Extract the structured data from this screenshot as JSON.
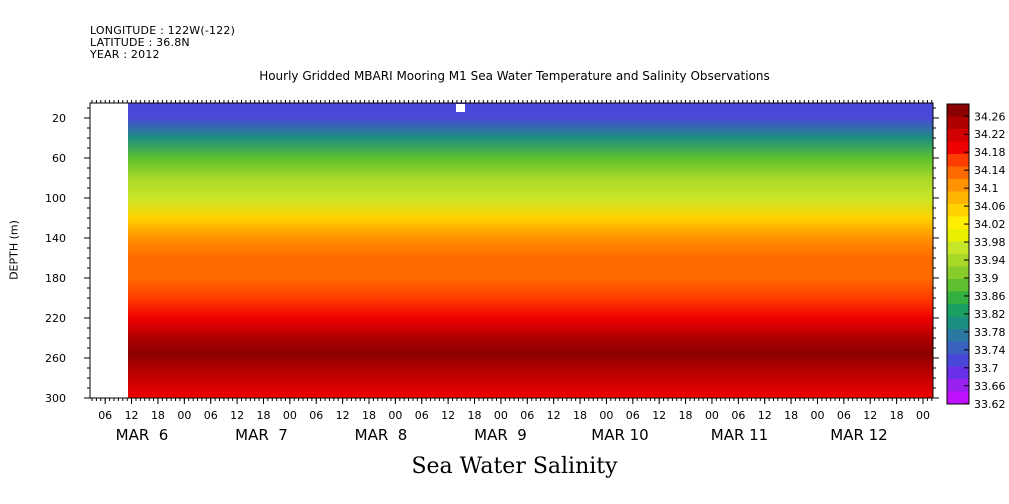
{
  "header": {
    "longitude": "LONGITUDE : 122W(-122)",
    "latitude": "LATITUDE : 36.8N",
    "year": "YEAR : 2012"
  },
  "chart_data": {
    "type": "heatmap",
    "title": "Hourly Gridded MBARI Mooring M1 Sea Water Temperature and Salinity Observations",
    "xtitle": "Sea Water Salinity",
    "ylabel": "DEPTH (m)",
    "ylim": [
      300,
      5
    ],
    "yticks": [
      20,
      60,
      100,
      140,
      180,
      220,
      260,
      300
    ],
    "x_hour_ticks": [
      "06",
      "12",
      "18",
      "00",
      "06",
      "12",
      "18",
      "00",
      "06",
      "12",
      "18",
      "00",
      "06",
      "12",
      "18",
      "00",
      "06",
      "12",
      "18",
      "00",
      "06",
      "12",
      "18",
      "00",
      "06",
      "12",
      "18",
      "00",
      "06",
      "12",
      "18",
      "00"
    ],
    "x_date_labels": [
      "MAR  6",
      "MAR  7",
      "MAR  8",
      "MAR  9",
      "MAR 10",
      "MAR 11",
      "MAR 12"
    ],
    "colorbar_labels": [
      "34.26",
      "34.22",
      "34.18",
      "34.14",
      "34.1",
      "34.06",
      "34.02",
      "33.98",
      "33.94",
      "33.9",
      "33.86",
      "33.82",
      "33.78",
      "33.74",
      "33.7",
      "33.66",
      "33.62"
    ],
    "colorbar_colors": [
      "#8b0000",
      "#b00000",
      "#d20000",
      "#f00000",
      "#ff3c00",
      "#ff6a00",
      "#ff9200",
      "#ffb400",
      "#ffd200",
      "#ffee00",
      "#e8f000",
      "#c8e628",
      "#a8d828",
      "#88cc2a",
      "#5ec030",
      "#34b040",
      "#1aa060",
      "#1c9080",
      "#2a78a0",
      "#3a60c0",
      "#4a48d8",
      "#6a30e8",
      "#9a20f0",
      "#c010ff"
    ],
    "depth_profile": [
      {
        "depth": 5,
        "salinity": 33.7
      },
      {
        "depth": 20,
        "salinity": 33.72
      },
      {
        "depth": 40,
        "salinity": 33.8
      },
      {
        "depth": 60,
        "salinity": 33.88
      },
      {
        "depth": 80,
        "salinity": 33.93
      },
      {
        "depth": 100,
        "salinity": 33.96
      },
      {
        "depth": 120,
        "salinity": 34.02
      },
      {
        "depth": 140,
        "salinity": 34.08
      },
      {
        "depth": 160,
        "salinity": 34.12
      },
      {
        "depth": 180,
        "salinity": 34.11
      },
      {
        "depth": 200,
        "salinity": 34.13
      },
      {
        "depth": 220,
        "salinity": 34.17
      },
      {
        "depth": 240,
        "salinity": 34.21
      },
      {
        "depth": 255,
        "salinity": 34.25
      },
      {
        "depth": 270,
        "salinity": 34.22
      },
      {
        "depth": 300,
        "salinity": 34.16
      }
    ]
  }
}
